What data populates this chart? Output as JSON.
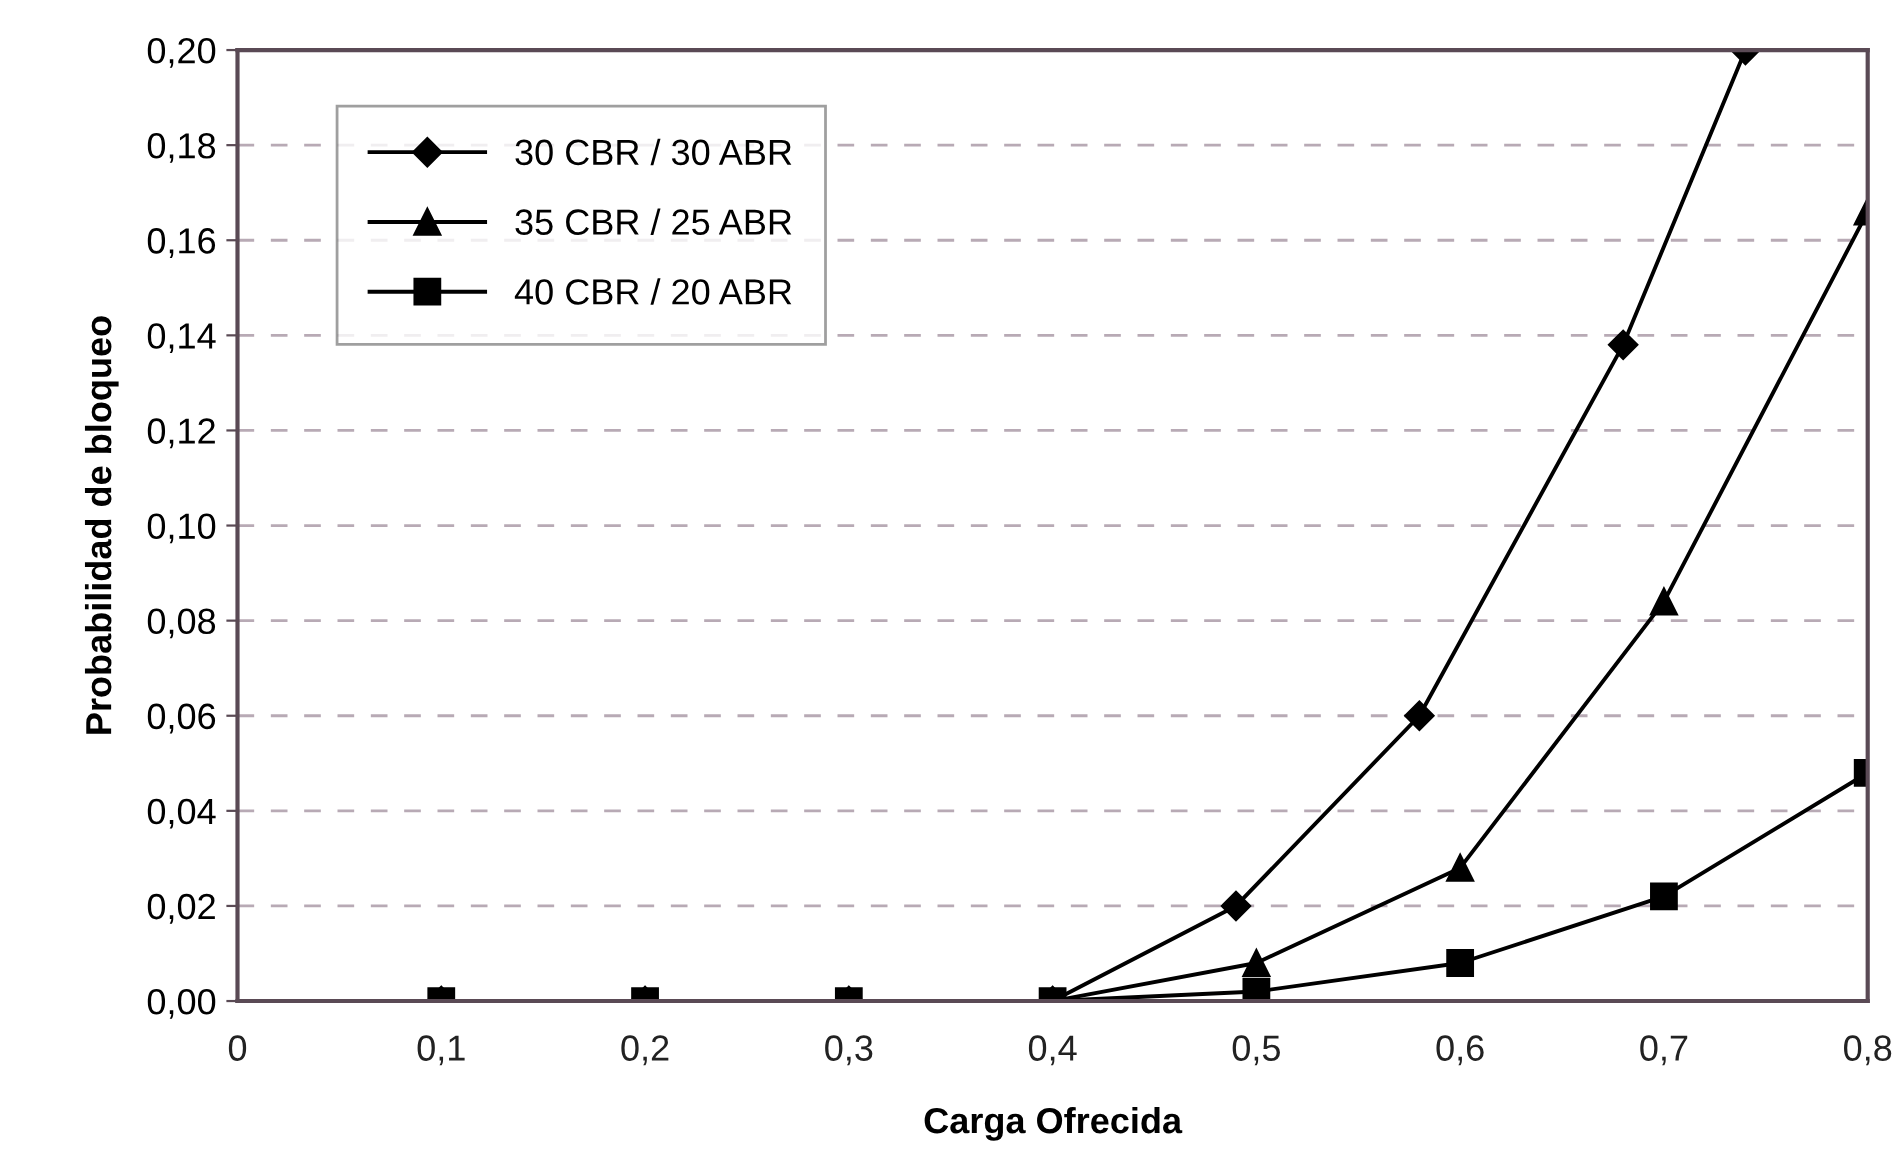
{
  "chart_data": {
    "type": "line",
    "xlabel": "Carga Ofrecida",
    "ylabel": "Probabilidad de bloqueo",
    "xlim": [
      0,
      0.8
    ],
    "ylim": [
      0,
      0.2
    ],
    "xticks": [
      0,
      {
        "value": 0.1,
        "label": "0,1"
      },
      {
        "value": 0.2,
        "label": "0,2"
      },
      {
        "value": 0.3,
        "label": "0,3"
      },
      {
        "value": 0.4,
        "label": "0,4"
      },
      {
        "value": 0.5,
        "label": "0,5"
      },
      {
        "value": 0.6,
        "label": "0,6"
      },
      {
        "value": 0.7,
        "label": "0,7"
      },
      {
        "value": 0.8,
        "label": "0,8"
      }
    ],
    "yticks": [
      {
        "value": 0,
        "label": "0,00"
      },
      {
        "value": 0.02,
        "label": "0,02"
      },
      {
        "value": 0.04,
        "label": "0,04"
      },
      {
        "value": 0.06,
        "label": "0,06"
      },
      {
        "value": 0.08,
        "label": "0,08"
      },
      {
        "value": 0.1,
        "label": "0,10"
      },
      {
        "value": 0.12,
        "label": "0,12"
      },
      {
        "value": 0.14,
        "label": "0,14"
      },
      {
        "value": 0.16,
        "label": "0,16"
      },
      {
        "value": 0.18,
        "label": "0,18"
      },
      {
        "value": 0.2,
        "label": "0,20"
      }
    ],
    "grid": "y",
    "legend": "top left",
    "line_style": "solid",
    "series": [
      {
        "name": "30 CBR / 30 ABR",
        "color": "#000000",
        "marker": "diamond",
        "x": [
          0.1,
          0.2,
          0.3,
          0.4,
          0.49,
          0.58,
          0.68,
          0.74
        ],
        "values": [
          0,
          0,
          0,
          0,
          0.02,
          0.06,
          0.138,
          0.2
        ]
      },
      {
        "name": "35 CBR / 25 ABR",
        "color": "#000000",
        "marker": "triangle",
        "x": [
          0.1,
          0.2,
          0.3,
          0.4,
          0.5,
          0.6,
          0.7,
          0.8
        ],
        "values": [
          0,
          0,
          0,
          0,
          0.008,
          0.028,
          0.084,
          0.166
        ]
      },
      {
        "name": "40 CBR / 20 ABR",
        "color": "#000000",
        "marker": "square",
        "x": [
          0.1,
          0.2,
          0.3,
          0.4,
          0.5,
          0.6,
          0.7,
          0.8
        ],
        "values": [
          0,
          0,
          0,
          0,
          0.002,
          0.008,
          0.022,
          0.048
        ]
      }
    ]
  }
}
